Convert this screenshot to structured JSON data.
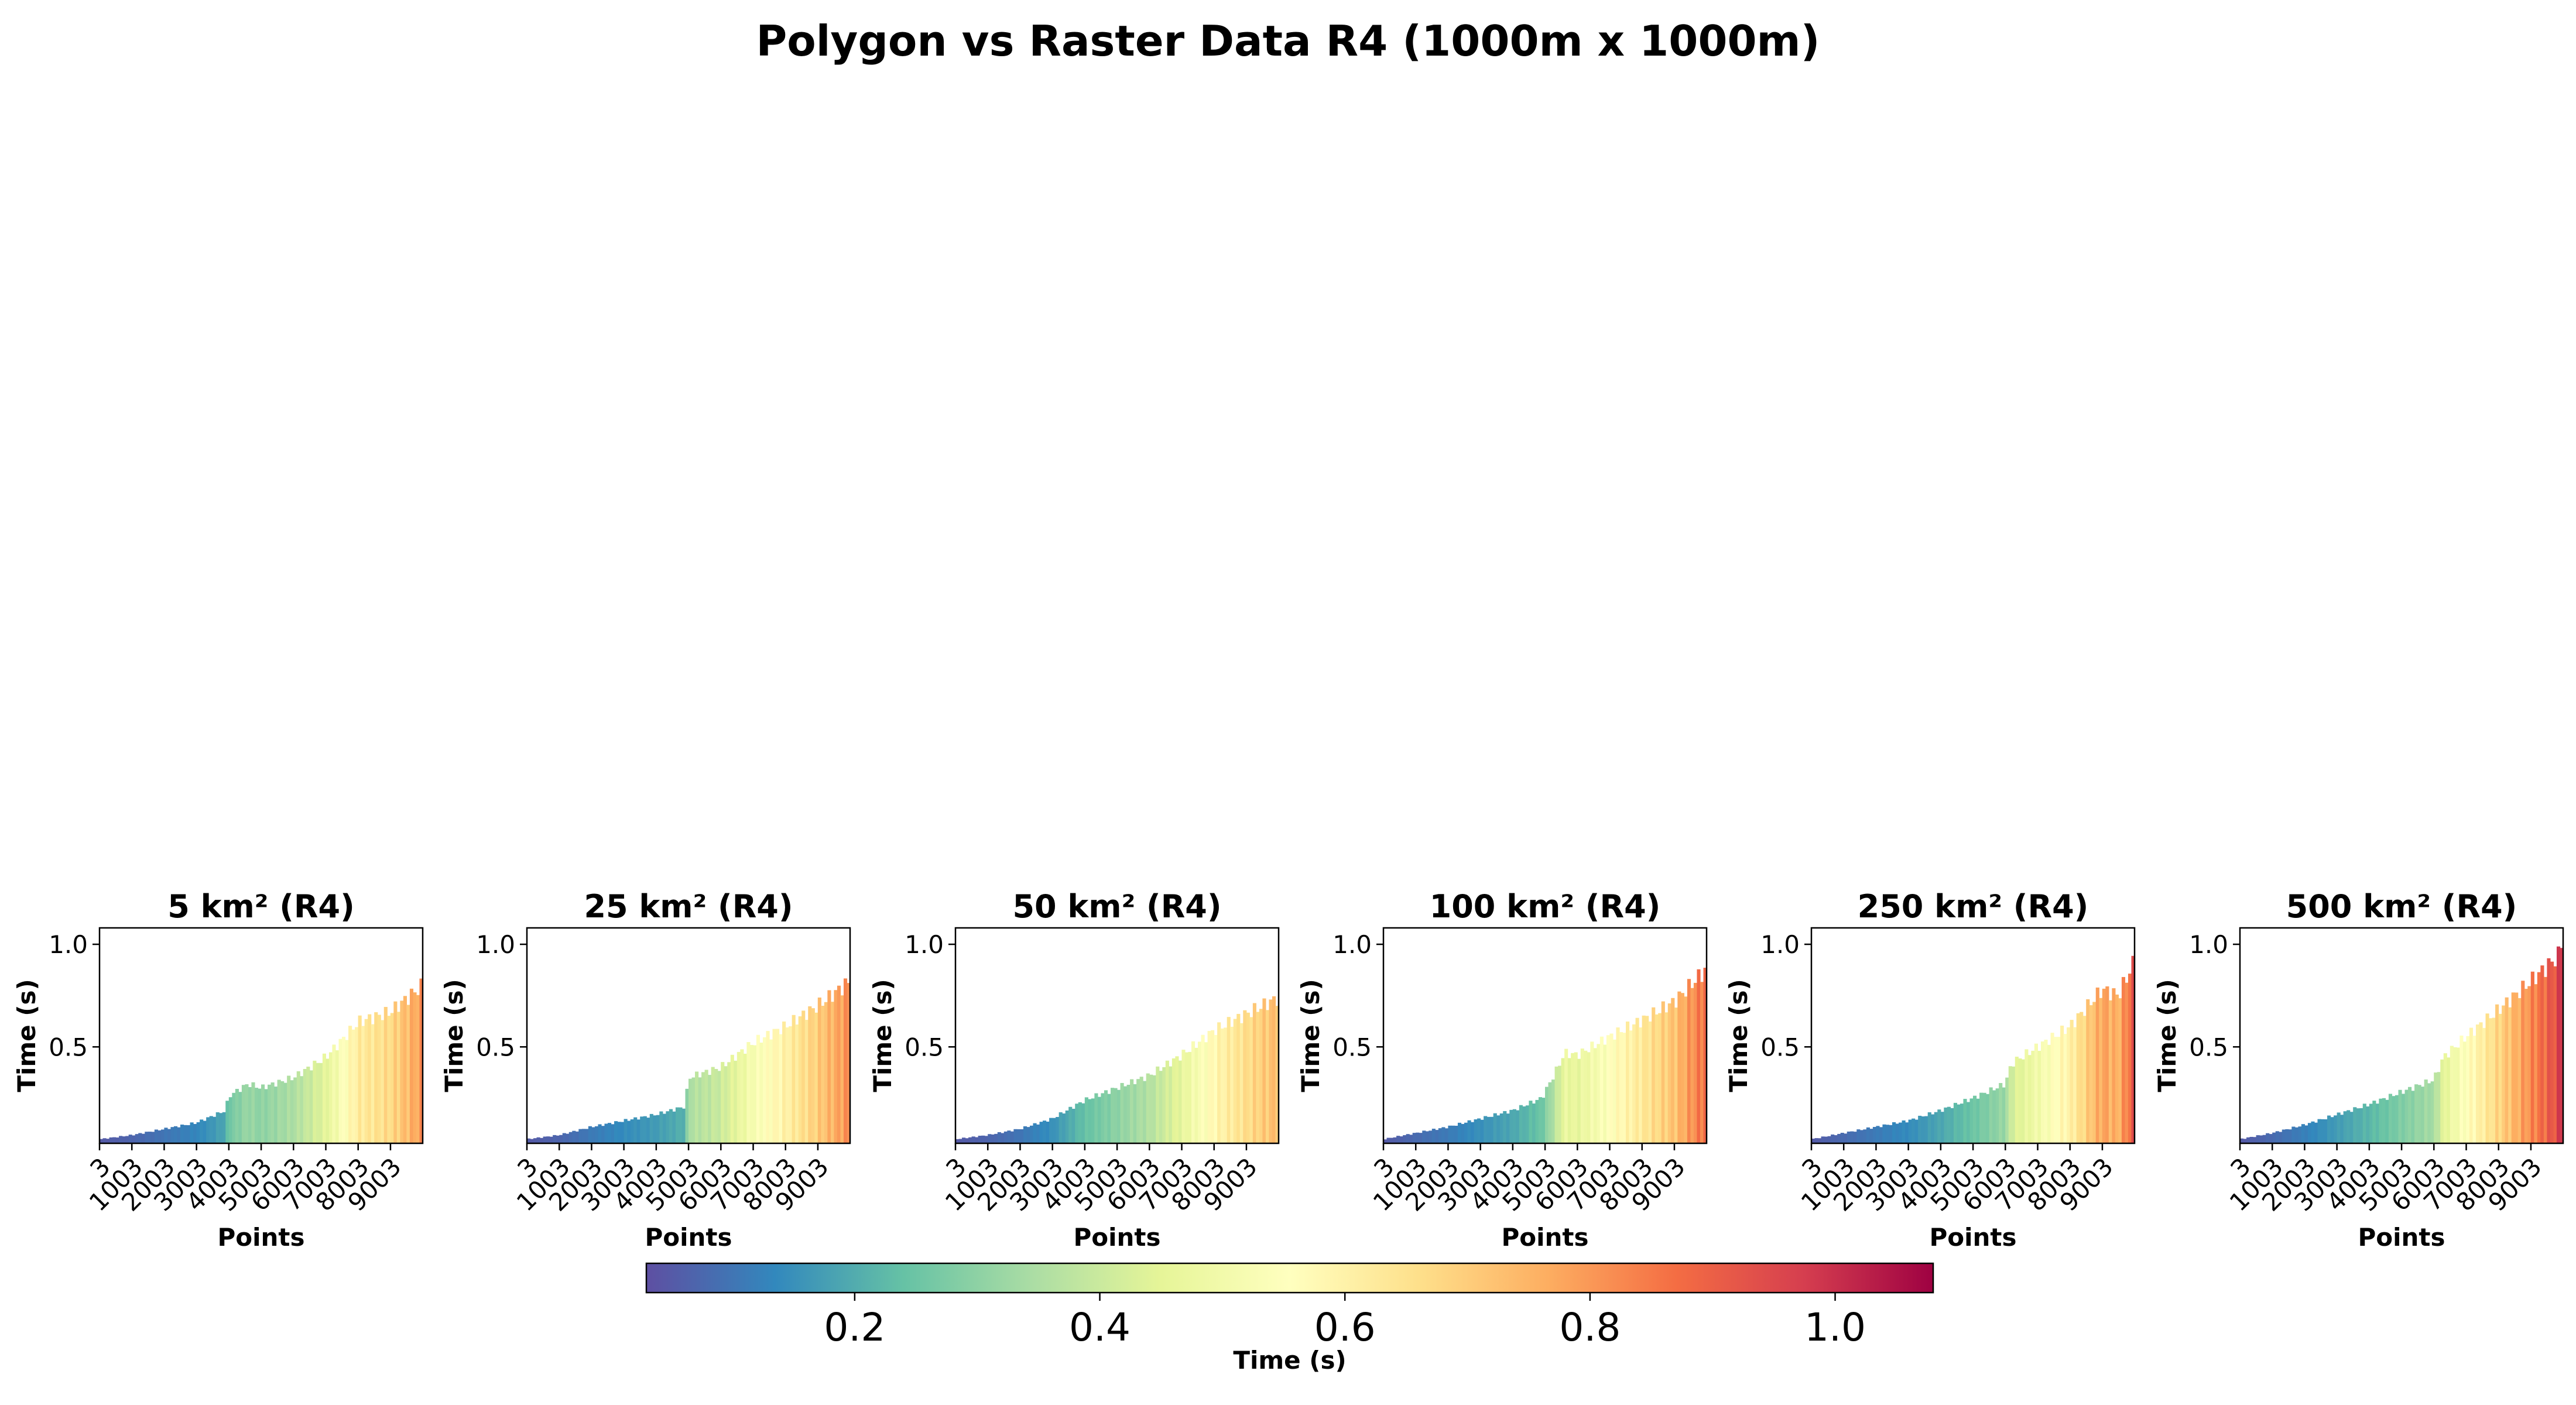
{
  "figure": {
    "title": "Polygon vs Raster Data R4 (1000m x 1000m)"
  },
  "colors": {
    "spectral_r": [
      "#5e4fa2",
      "#3288bd",
      "#66c2a5",
      "#abdda4",
      "#e6f598",
      "#ffffbf",
      "#fee08b",
      "#fdae61",
      "#f46d43",
      "#d53e4f",
      "#9e0142"
    ],
    "axes": "#000000",
    "background": "#ffffff"
  },
  "chart_data": [
    {
      "type": "bar",
      "title": "5 km² (R4)",
      "xlabel": "Points",
      "ylabel": "Time (s)",
      "xticks": [
        "3",
        "1003",
        "2003",
        "3003",
        "4003",
        "5003",
        "6003",
        "7003",
        "8003",
        "9003"
      ],
      "yticks": [
        "0.5",
        "1.0"
      ],
      "ylim": [
        0.03,
        1.08
      ],
      "x_range": [
        3,
        10000
      ],
      "anchors": [
        [
          3,
          0.05
        ],
        [
          1000,
          0.07
        ],
        [
          2000,
          0.1
        ],
        [
          3000,
          0.13
        ],
        [
          3900,
          0.19
        ],
        [
          4000,
          0.26
        ],
        [
          4600,
          0.32
        ],
        [
          5000,
          0.3
        ],
        [
          6000,
          0.35
        ],
        [
          7000,
          0.45
        ],
        [
          7600,
          0.55
        ],
        [
          8000,
          0.62
        ],
        [
          9000,
          0.67
        ],
        [
          10000,
          0.8
        ]
      ]
    },
    {
      "type": "bar",
      "title": "25 km² (R4)",
      "xlabel": "Points",
      "ylabel": "Time (s)",
      "xticks": [
        "3",
        "1003",
        "2003",
        "3003",
        "4003",
        "5003",
        "6003",
        "7003",
        "8003",
        "9003"
      ],
      "yticks": [
        "0.5",
        "1.0"
      ],
      "ylim": [
        0.03,
        1.08
      ],
      "x_range": [
        3,
        10000
      ],
      "anchors": [
        [
          3,
          0.05
        ],
        [
          1000,
          0.07
        ],
        [
          2000,
          0.11
        ],
        [
          3000,
          0.14
        ],
        [
          4000,
          0.17
        ],
        [
          4900,
          0.21
        ],
        [
          5000,
          0.35
        ],
        [
          6000,
          0.4
        ],
        [
          7000,
          0.52
        ],
        [
          8000,
          0.6
        ],
        [
          9000,
          0.7
        ],
        [
          10000,
          0.82
        ]
      ]
    },
    {
      "type": "bar",
      "title": "50 km² (R4)",
      "xlabel": "Points",
      "ylabel": "Time (s)",
      "xticks": [
        "3",
        "1003",
        "2003",
        "3003",
        "4003",
        "5003",
        "6003",
        "7003",
        "8003",
        "9003"
      ],
      "yticks": [
        "0.5",
        "1.0"
      ],
      "ylim": [
        0.03,
        1.08
      ],
      "x_range": [
        3,
        10000
      ],
      "anchors": [
        [
          3,
          0.05
        ],
        [
          1000,
          0.07
        ],
        [
          2000,
          0.1
        ],
        [
          3000,
          0.15
        ],
        [
          4000,
          0.24
        ],
        [
          5000,
          0.3
        ],
        [
          6000,
          0.36
        ],
        [
          7000,
          0.46
        ],
        [
          8000,
          0.58
        ],
        [
          9000,
          0.66
        ],
        [
          10000,
          0.74
        ]
      ]
    },
    {
      "type": "bar",
      "title": "100 km² (R4)",
      "xlabel": "Points",
      "ylabel": "Time (s)",
      "xticks": [
        "3",
        "1003",
        "2003",
        "3003",
        "4003",
        "5003",
        "6003",
        "7003",
        "8003",
        "9003"
      ],
      "yticks": [
        "0.5",
        "1.0"
      ],
      "ylim": [
        0.03,
        1.08
      ],
      "x_range": [
        3,
        10000
      ],
      "anchors": [
        [
          3,
          0.05
        ],
        [
          1000,
          0.08
        ],
        [
          2000,
          0.11
        ],
        [
          3000,
          0.15
        ],
        [
          4000,
          0.19
        ],
        [
          4900,
          0.25
        ],
        [
          5400,
          0.4
        ],
        [
          5600,
          0.47
        ],
        [
          6000,
          0.46
        ],
        [
          7000,
          0.55
        ],
        [
          8000,
          0.63
        ],
        [
          9000,
          0.72
        ],
        [
          10000,
          0.88
        ]
      ]
    },
    {
      "type": "bar",
      "title": "250 km² (R4)",
      "xlabel": "Points",
      "ylabel": "Time (s)",
      "xticks": [
        "3",
        "1003",
        "2003",
        "3003",
        "4003",
        "5003",
        "6003",
        "7003",
        "8003",
        "9003"
      ],
      "yticks": [
        "0.5",
        "1.0"
      ],
      "ylim": [
        0.03,
        1.08
      ],
      "x_range": [
        3,
        10000
      ],
      "anchors": [
        [
          3,
          0.05
        ],
        [
          1000,
          0.08
        ],
        [
          2000,
          0.11
        ],
        [
          3000,
          0.14
        ],
        [
          4000,
          0.19
        ],
        [
          5000,
          0.25
        ],
        [
          6000,
          0.32
        ],
        [
          6200,
          0.42
        ],
        [
          7000,
          0.5
        ],
        [
          8000,
          0.6
        ],
        [
          9000,
          0.78
        ],
        [
          9500,
          0.75
        ],
        [
          10000,
          0.92
        ]
      ]
    },
    {
      "type": "bar",
      "title": "500 km² (R4)",
      "xlabel": "Points",
      "ylabel": "Time (s)",
      "xticks": [
        "3",
        "1003",
        "2003",
        "3003",
        "4003",
        "5003",
        "6003",
        "7003",
        "8003",
        "9003"
      ],
      "yticks": [
        "0.5",
        "1.0"
      ],
      "ylim": [
        0.03,
        1.08
      ],
      "x_range": [
        3,
        10000
      ],
      "anchors": [
        [
          3,
          0.05
        ],
        [
          1000,
          0.08
        ],
        [
          2000,
          0.12
        ],
        [
          3000,
          0.17
        ],
        [
          4000,
          0.22
        ],
        [
          5000,
          0.28
        ],
        [
          6000,
          0.34
        ],
        [
          6300,
          0.45
        ],
        [
          7000,
          0.55
        ],
        [
          8000,
          0.68
        ],
        [
          9000,
          0.82
        ],
        [
          9900,
          0.95
        ],
        [
          10000,
          1.07
        ]
      ]
    }
  ],
  "colorbar": {
    "label": "Time (s)",
    "vmin": 0.03,
    "vmax": 1.08,
    "ticks": [
      0.2,
      0.4,
      0.6,
      0.8,
      1.0
    ],
    "tick_labels": [
      "0.2",
      "0.4",
      "0.6",
      "0.8",
      "1.0"
    ],
    "colormap": "Spectral_r"
  }
}
